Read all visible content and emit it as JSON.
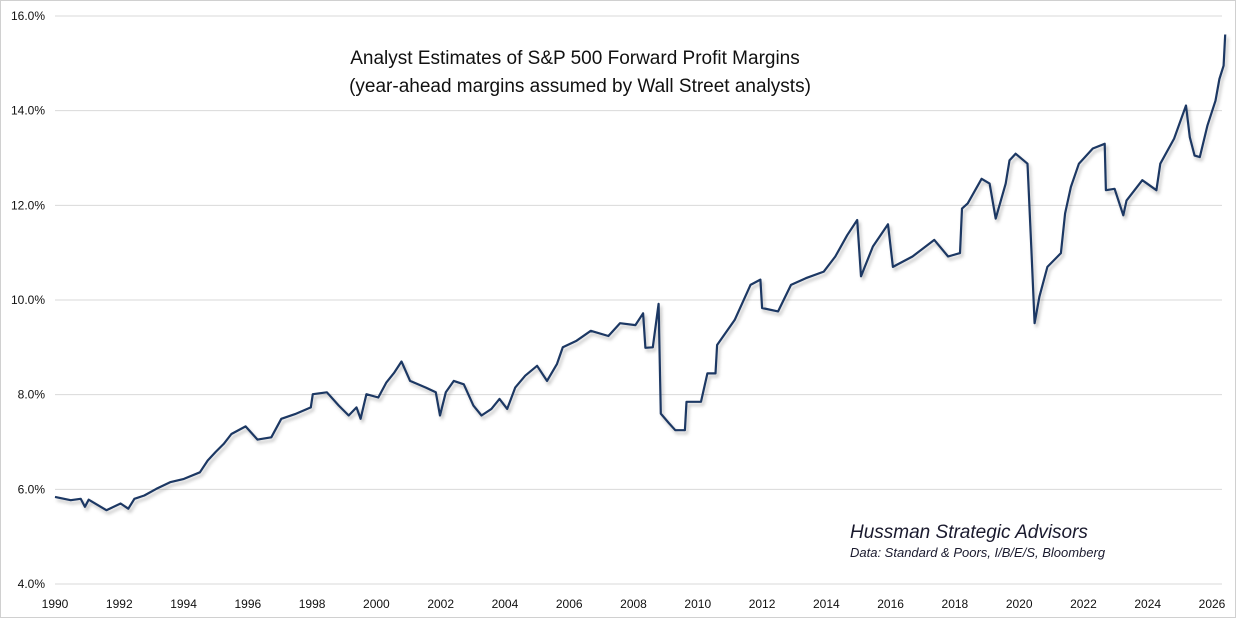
{
  "chart_data": {
    "type": "line",
    "title": "Analyst Estimates of S&P 500 Forward Profit Margins",
    "subtitle": "(year-ahead margins assumed by Wall Street analysts)",
    "xlabel": "",
    "ylabel": "",
    "xlim": [
      1990,
      2026.5
    ],
    "ylim": [
      4.0,
      16.0
    ],
    "x_ticks": [
      "1990",
      "1992",
      "1994",
      "1996",
      "1998",
      "2000",
      "2002",
      "2004",
      "2006",
      "2008",
      "2010",
      "2012",
      "2014",
      "2016",
      "2018",
      "2020",
      "2022",
      "2024",
      "2026"
    ],
    "y_ticks": [
      "4.0%",
      "6.0%",
      "8.0%",
      "10.0%",
      "12.0%",
      "14.0%",
      "16.0%"
    ],
    "grid": "horizontal",
    "line_color": "#1f3864",
    "annotations": {
      "source_name": "Hussman Strategic Advisors",
      "source_data": "Data: Standard & Poors, I/B/E/S, Bloomberg"
    },
    "series": [
      {
        "x": [
          1990.0,
          1990.49,
          1990.8,
          1990.93,
          1991.05,
          1991.6,
          1992.04,
          1992.28,
          1992.47,
          1992.78,
          1993.15,
          1993.58,
          1994.01,
          1994.51,
          1994.75,
          1995.0,
          1995.25,
          1995.49,
          1995.93,
          1996.3,
          1996.73,
          1997.04,
          1997.47,
          1997.96,
          1998.02,
          1998.46,
          1998.83,
          1999.14,
          1999.38,
          1999.51,
          1999.69,
          2000.06,
          2000.31,
          2000.56,
          2000.78,
          2001.05,
          2001.54,
          2001.85,
          2001.98,
          2002.16,
          2002.41,
          2002.72,
          2003.02,
          2003.27,
          2003.58,
          2003.83,
          2004.07,
          2004.32,
          2004.63,
          2005.0,
          2005.31,
          2005.62,
          2005.8,
          2006.23,
          2006.67,
          2007.22,
          2007.58,
          2008.06,
          2008.3,
          2008.37,
          2008.6,
          2008.78,
          2008.85,
          2009.1,
          2009.3,
          2009.6,
          2009.65,
          2010.1,
          2010.3,
          2010.55,
          2010.6,
          2011.15,
          2011.64,
          2011.95,
          2012.0,
          2012.5,
          2012.9,
          2013.36,
          2013.92,
          2014.28,
          2014.65,
          2014.96,
          2015.08,
          2015.45,
          2015.92,
          2016.07,
          2016.68,
          2017.36,
          2017.79,
          2018.16,
          2018.22,
          2018.4,
          2018.83,
          2019.08,
          2019.27,
          2019.58,
          2019.7,
          2019.89,
          2020.26,
          2020.38,
          2020.48,
          2020.63,
          2020.88,
          2021.3,
          2021.43,
          2021.61,
          2021.86,
          2022.29,
          2022.66,
          2022.7,
          2022.97,
          2023.24,
          2023.34,
          2023.83,
          2024.27,
          2024.39,
          2024.82,
          2025.19,
          2025.31,
          2025.46,
          2025.62,
          2025.86,
          2026.11,
          2026.23,
          2026.36,
          2026.41
        ],
        "values": [
          5.84,
          5.77,
          5.8,
          5.63,
          5.78,
          5.56,
          5.7,
          5.59,
          5.8,
          5.87,
          6.01,
          6.15,
          6.22,
          6.36,
          6.61,
          6.79,
          6.96,
          7.17,
          7.33,
          7.05,
          7.1,
          7.49,
          7.59,
          7.73,
          8.01,
          8.05,
          7.77,
          7.56,
          7.73,
          7.49,
          8.01,
          7.94,
          8.26,
          8.47,
          8.7,
          8.29,
          8.15,
          8.05,
          7.56,
          8.05,
          8.29,
          8.22,
          7.77,
          7.56,
          7.7,
          7.91,
          7.7,
          8.15,
          8.4,
          8.61,
          8.29,
          8.65,
          9.0,
          9.14,
          9.35,
          9.24,
          9.51,
          9.47,
          9.72,
          8.99,
          9.0,
          9.92,
          7.6,
          7.4,
          7.25,
          7.25,
          7.85,
          7.85,
          8.45,
          8.45,
          9.05,
          9.58,
          10.32,
          10.43,
          9.83,
          9.76,
          10.32,
          10.46,
          10.6,
          10.92,
          11.37,
          11.69,
          10.5,
          11.13,
          11.6,
          10.7,
          10.92,
          11.27,
          10.92,
          10.99,
          11.93,
          12.04,
          12.56,
          12.46,
          11.72,
          12.46,
          12.95,
          13.09,
          12.88,
          11.06,
          9.51,
          10.07,
          10.7,
          10.99,
          11.83,
          12.39,
          12.88,
          13.2,
          13.3,
          12.32,
          12.35,
          11.79,
          12.1,
          12.53,
          12.32,
          12.88,
          13.41,
          14.11,
          13.44,
          13.05,
          13.02,
          13.69,
          14.21,
          14.67,
          14.95,
          15.61
        ]
      }
    ]
  }
}
